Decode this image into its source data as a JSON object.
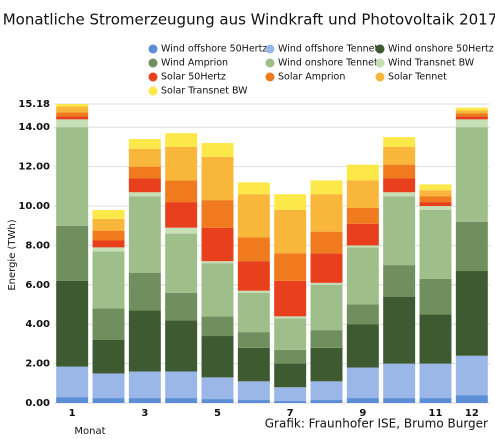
{
  "chart_data": {
    "type": "bar",
    "stacked": true,
    "title": "Monatliche Stromerzeugung aus Windkraft und Photovoltaik 2017",
    "y_label": "Energie (TWh)",
    "x_label": "Monat",
    "annotation": "Grafik: Fraunhofer ISE, Brumo Burger",
    "categories": [
      "1",
      null,
      "3",
      null,
      "5",
      null,
      "7",
      null,
      "9",
      null,
      "11",
      "12"
    ],
    "ylim": [
      0,
      15.18
    ],
    "yticks": [
      {
        "value": 0,
        "label": "0.00"
      },
      {
        "value": 2,
        "label": "2.00"
      },
      {
        "value": 4,
        "label": "4.00"
      },
      {
        "value": 6,
        "label": "6.00"
      },
      {
        "value": 8,
        "label": "8.00"
      },
      {
        "value": 10,
        "label": "10.00"
      },
      {
        "value": 12,
        "label": "12.00"
      },
      {
        "value": 14,
        "label": "14.00"
      },
      {
        "value": 15.18,
        "label": "15.18"
      }
    ],
    "grid": true,
    "series": [
      {
        "name": "Wind offshore 50Hertz",
        "color": "#5b8ed6",
        "values": [
          0.3,
          0.25,
          0.25,
          0.25,
          0.2,
          0.15,
          0.1,
          0.15,
          0.25,
          0.25,
          0.25,
          0.4
        ]
      },
      {
        "name": "Wind offshore Tennet",
        "color": "#9ab7e8",
        "values": [
          1.55,
          1.25,
          1.35,
          1.35,
          1.1,
          0.95,
          0.7,
          0.95,
          1.55,
          1.75,
          1.75,
          2.0
        ]
      },
      {
        "name": "Wind onshore 50Hertz",
        "color": "#3d5a30",
        "values": [
          4.35,
          1.7,
          3.1,
          2.6,
          2.1,
          1.7,
          1.2,
          1.7,
          2.2,
          3.4,
          2.5,
          4.3
        ]
      },
      {
        "name": "Wind Amprion",
        "color": "#6f8f5e",
        "values": [
          2.8,
          1.6,
          1.9,
          1.4,
          1.0,
          0.8,
          0.7,
          0.9,
          1.0,
          1.6,
          1.8,
          2.5
        ]
      },
      {
        "name": "Wind onshore Tennet",
        "color": "#9fbf8a",
        "values": [
          5.0,
          2.9,
          3.9,
          3.0,
          2.7,
          2.0,
          1.6,
          2.3,
          2.9,
          3.5,
          3.5,
          4.8
        ]
      },
      {
        "name": "Wind Transnet BW",
        "color": "#c7dfb5",
        "values": [
          0.4,
          0.2,
          0.2,
          0.3,
          0.1,
          0.1,
          0.1,
          0.1,
          0.1,
          0.2,
          0.2,
          0.4
        ]
      },
      {
        "name": "Solar 50Hertz",
        "color": "#e8401c",
        "values": [
          0.15,
          0.35,
          0.7,
          1.3,
          1.7,
          1.5,
          1.8,
          1.5,
          1.1,
          0.7,
          0.2,
          0.15
        ]
      },
      {
        "name": "Solar Amprion",
        "color": "#f07a1e",
        "values": [
          0.2,
          0.5,
          0.6,
          1.1,
          1.4,
          1.2,
          1.4,
          1.1,
          0.8,
          0.7,
          0.3,
          0.15
        ]
      },
      {
        "name": "Solar Tennet",
        "color": "#f8b63a",
        "values": [
          0.3,
          0.6,
          0.9,
          1.7,
          2.2,
          2.2,
          2.2,
          1.9,
          1.4,
          0.9,
          0.3,
          0.15
        ]
      },
      {
        "name": "Solar Transnet BW",
        "color": "#fde84a",
        "values": [
          0.13,
          0.45,
          0.5,
          0.7,
          0.7,
          0.6,
          0.8,
          0.7,
          0.8,
          0.5,
          0.3,
          0.15
        ]
      }
    ]
  }
}
